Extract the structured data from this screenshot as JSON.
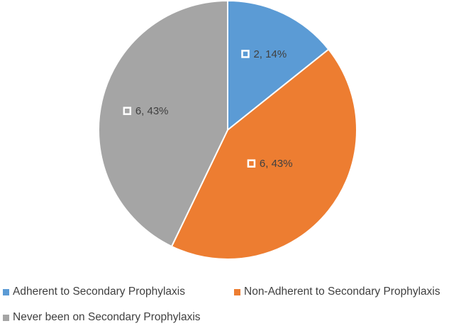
{
  "chart_data": {
    "type": "pie",
    "title": "",
    "slices": [
      {
        "label": "Adherent to Secondary Prophylaxis",
        "value": 2,
        "percent": "14%",
        "color": "#5B9BD5",
        "data_label": "2, 14%"
      },
      {
        "label": "Non-Adherent to Secondary Prophylaxis",
        "value": 6,
        "percent": "43%",
        "color": "#ED7D31",
        "data_label": "6, 43%"
      },
      {
        "label": "Never been on Secondary Prophylaxis",
        "value": 6,
        "percent": "43%",
        "color": "#A5A5A5",
        "data_label": "6, 43%"
      }
    ],
    "start_angle": "12 o'clock",
    "direction": "clockwise",
    "legend_position": "bottom"
  }
}
